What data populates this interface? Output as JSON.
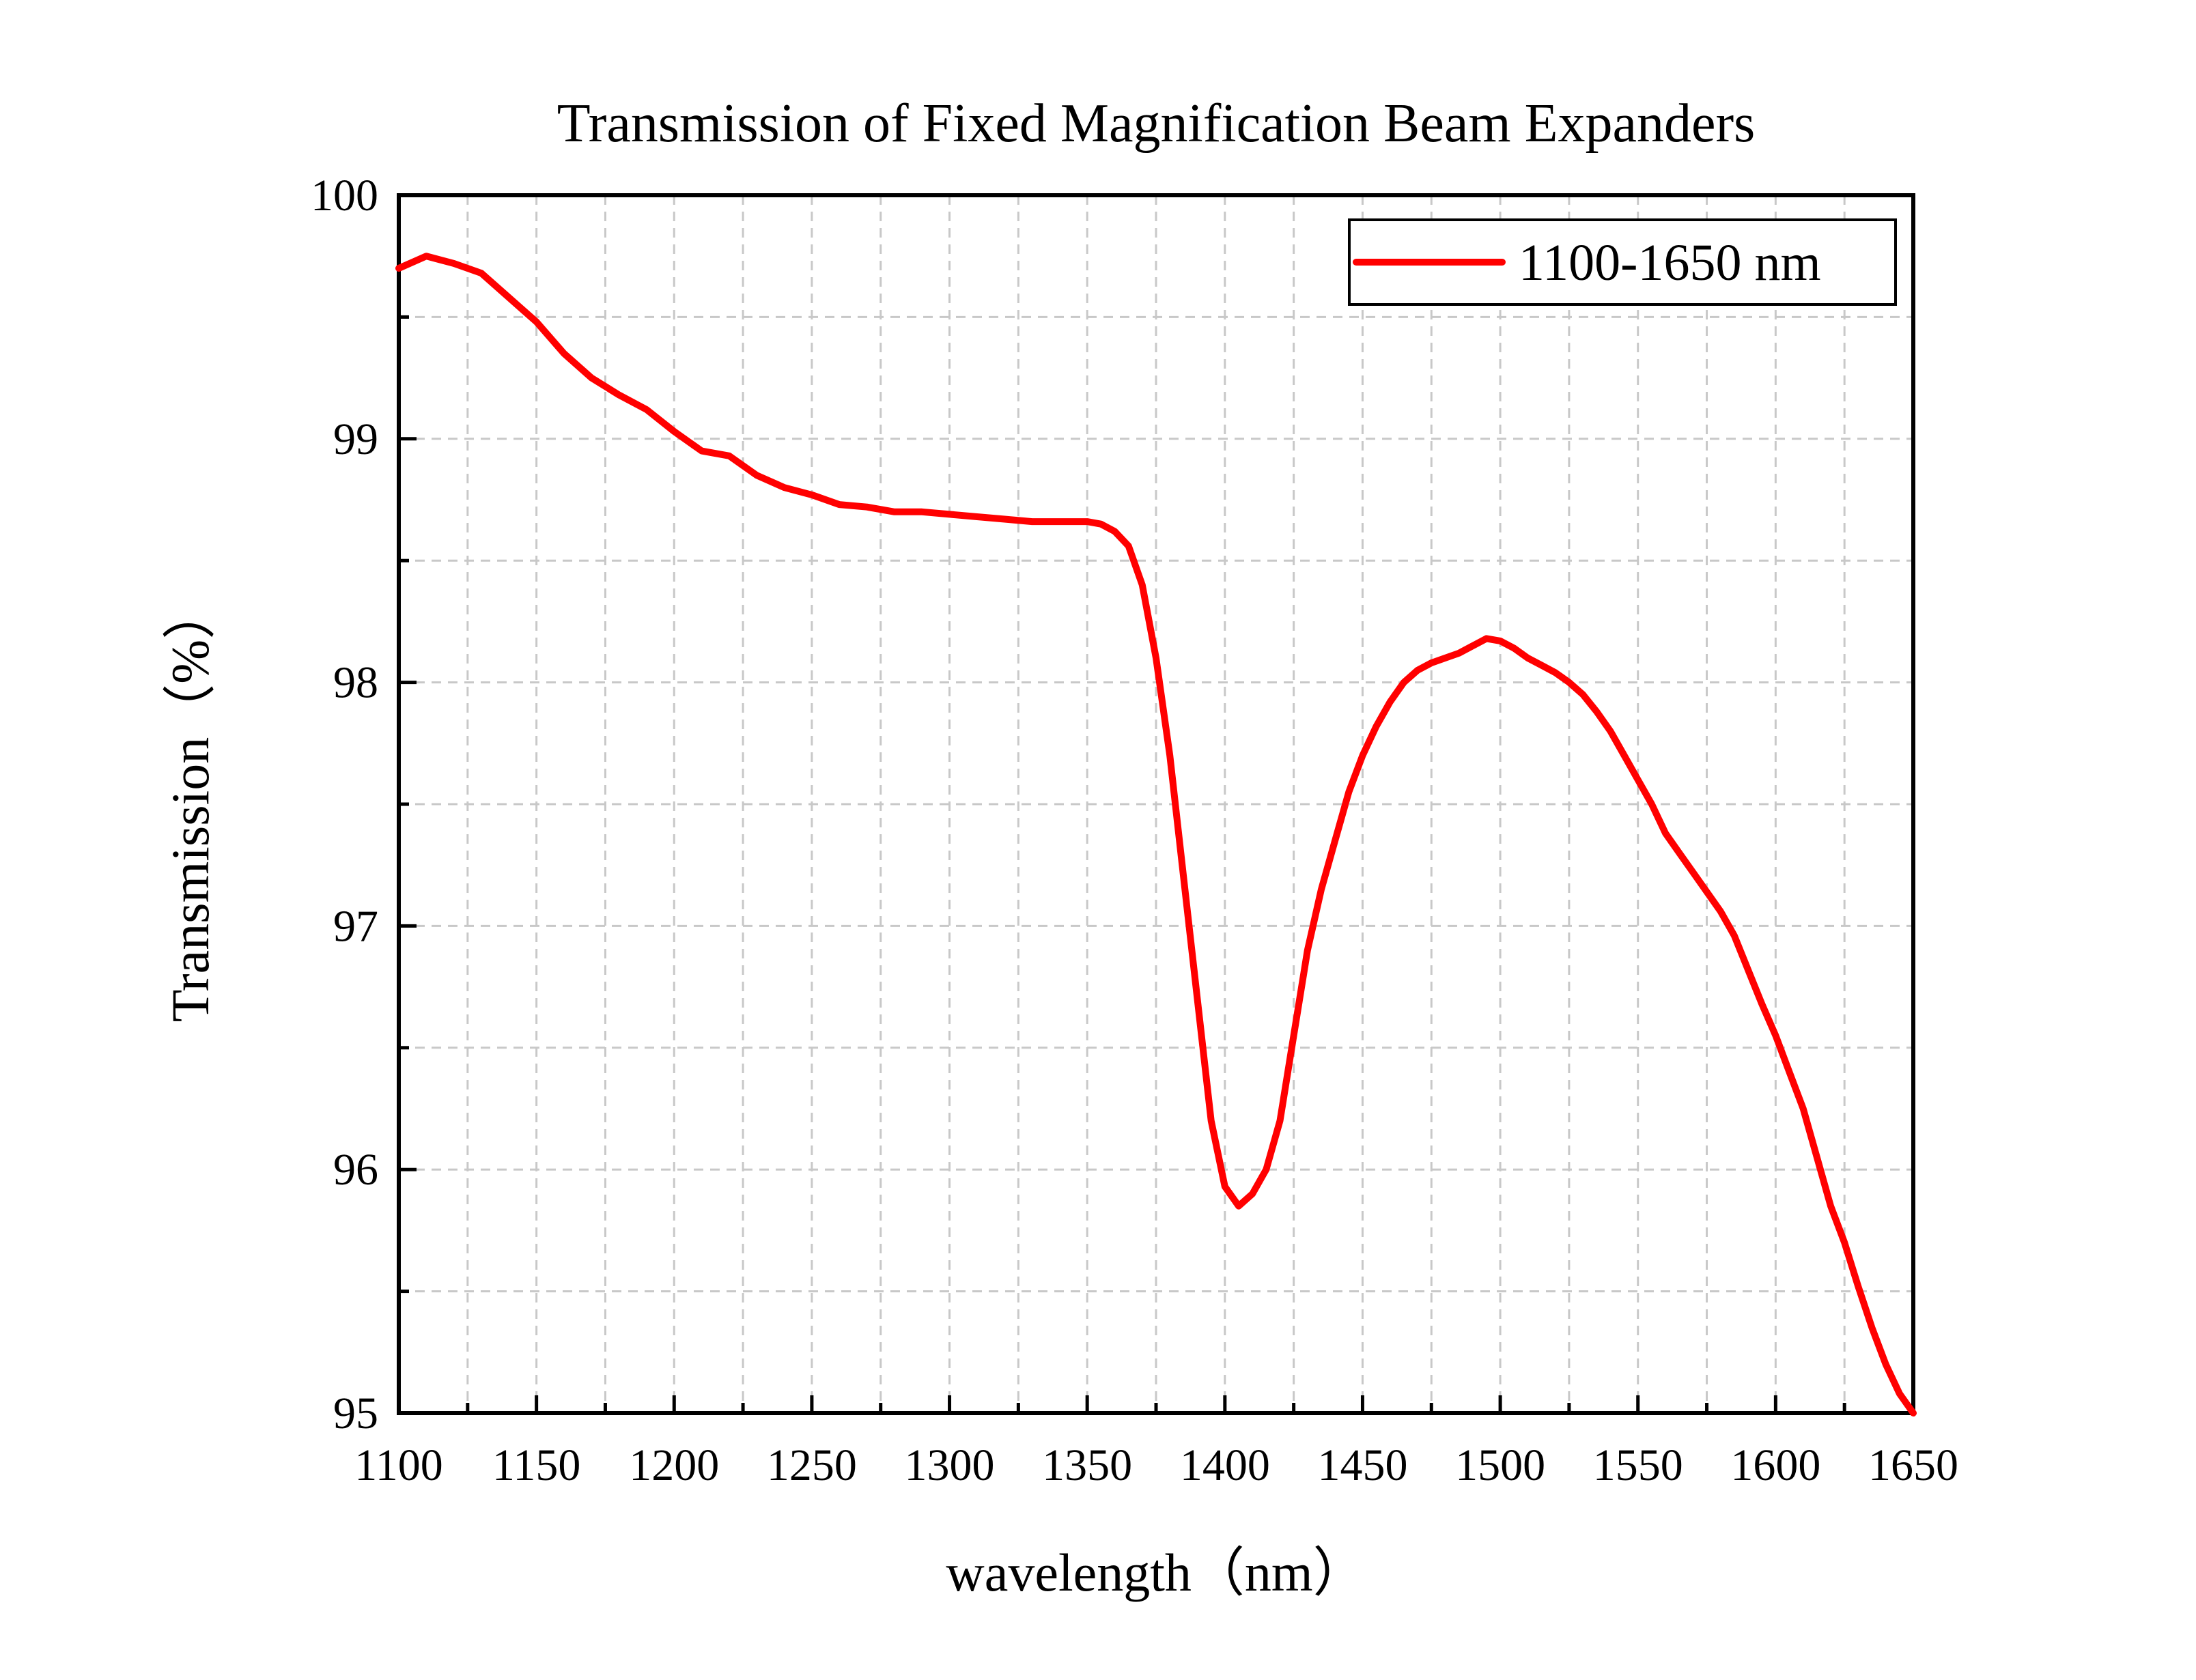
{
  "chart_data": {
    "type": "line",
    "title": "Transmission of Fixed Magnification Beam Expanders",
    "xlabel": "wavelength（nm）",
    "ylabel": "Transmission（%）",
    "xlim": [
      1100,
      1650
    ],
    "ylim": [
      95,
      100
    ],
    "xticks": [
      1100,
      1150,
      1200,
      1250,
      1300,
      1350,
      1400,
      1450,
      1500,
      1550,
      1600,
      1650
    ],
    "yticks": [
      95,
      96,
      97,
      98,
      99,
      100
    ],
    "xtick_labels": [
      "1100",
      "1150",
      "1200",
      "1250",
      "1300",
      "1350",
      "1400",
      "1450",
      "1500",
      "1550",
      "1600",
      "1650"
    ],
    "ytick_labels": [
      "95",
      "96",
      "97",
      "98",
      "99",
      "100"
    ],
    "grid": true,
    "legend_position": "top-right",
    "series": [
      {
        "name": "1100-1650 nm",
        "color": "#ff0000",
        "x": [
          1100,
          1110,
          1120,
          1130,
          1140,
          1150,
          1160,
          1170,
          1180,
          1190,
          1200,
          1210,
          1220,
          1230,
          1240,
          1250,
          1260,
          1270,
          1280,
          1290,
          1300,
          1310,
          1320,
          1330,
          1340,
          1350,
          1355,
          1360,
          1365,
          1370,
          1375,
          1380,
          1385,
          1390,
          1395,
          1400,
          1405,
          1410,
          1415,
          1420,
          1425,
          1430,
          1435,
          1440,
          1445,
          1450,
          1455,
          1460,
          1465,
          1470,
          1475,
          1480,
          1485,
          1490,
          1495,
          1500,
          1505,
          1510,
          1515,
          1520,
          1525,
          1530,
          1535,
          1540,
          1545,
          1550,
          1555,
          1560,
          1565,
          1570,
          1575,
          1580,
          1585,
          1590,
          1595,
          1600,
          1605,
          1610,
          1615,
          1620,
          1625,
          1630,
          1635,
          1640,
          1645,
          1650
        ],
        "y": [
          99.7,
          99.75,
          99.72,
          99.68,
          99.58,
          99.48,
          99.35,
          99.25,
          99.18,
          99.12,
          99.03,
          98.95,
          98.93,
          98.85,
          98.8,
          98.77,
          98.73,
          98.72,
          98.7,
          98.7,
          98.69,
          98.68,
          98.67,
          98.66,
          98.66,
          98.66,
          98.65,
          98.62,
          98.56,
          98.4,
          98.1,
          97.7,
          97.2,
          96.7,
          96.2,
          95.93,
          95.85,
          95.9,
          96.0,
          96.2,
          96.55,
          96.9,
          97.15,
          97.35,
          97.55,
          97.7,
          97.82,
          97.92,
          98.0,
          98.05,
          98.08,
          98.1,
          98.12,
          98.15,
          98.18,
          98.17,
          98.14,
          98.1,
          98.07,
          98.04,
          98.0,
          97.95,
          97.88,
          97.8,
          97.7,
          97.6,
          97.5,
          97.38,
          97.3,
          97.22,
          97.14,
          97.06,
          96.96,
          96.82,
          96.68,
          96.55,
          96.4,
          96.25,
          96.05,
          95.85,
          95.7,
          95.52,
          95.35,
          95.2,
          95.08,
          95.0
        ]
      }
    ]
  }
}
